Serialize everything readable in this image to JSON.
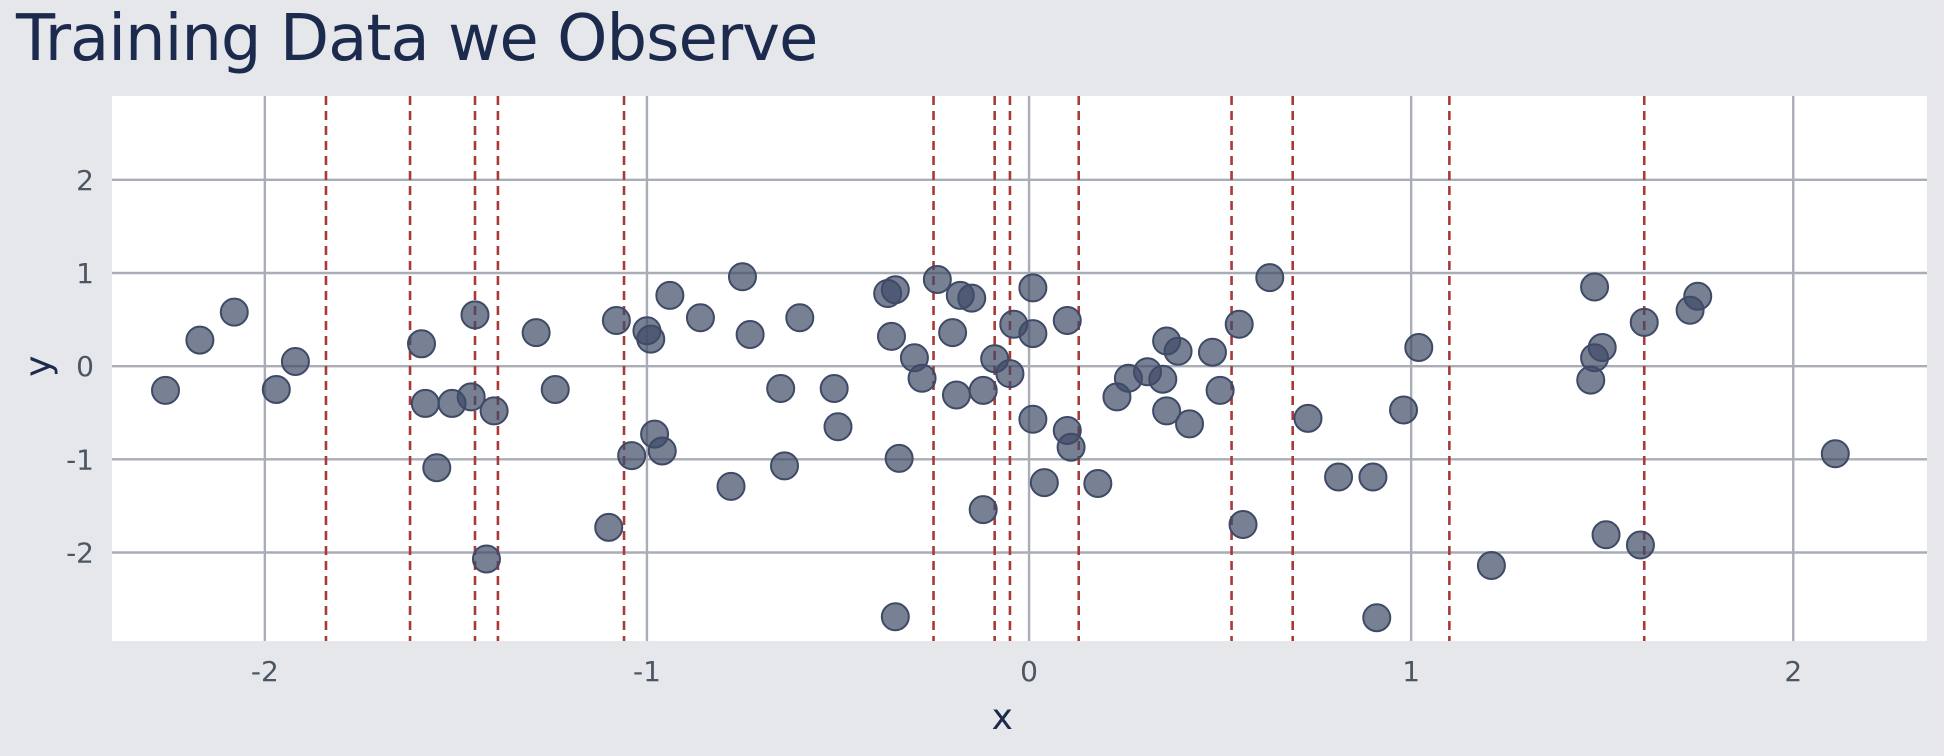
{
  "title": "Training Data we Observe",
  "chart_data": {
    "type": "scatter",
    "title": "Training Data we Observe",
    "xlabel": "x",
    "ylabel": "y",
    "xlim": [
      -2.4,
      2.35
    ],
    "ylim": [
      -2.95,
      2.9
    ],
    "xticks": [
      -2,
      -1,
      0,
      1,
      2
    ],
    "yticks": [
      -2,
      -1,
      0,
      1,
      2
    ],
    "grid": true,
    "colors": {
      "background": "#e5e7eb",
      "panel": "#ffffff",
      "grid": "#a9adb6",
      "points": "#3e4a66",
      "vlines": "#a83a3a",
      "title": "#1c2a4d"
    },
    "vertical_lines_x": [
      -1.84,
      -1.62,
      -1.45,
      -1.39,
      -1.06,
      -0.25,
      -0.09,
      -0.05,
      0.13,
      0.53,
      0.69,
      1.1,
      1.61
    ],
    "points": [
      {
        "x": -2.26,
        "y": -0.26
      },
      {
        "x": -2.17,
        "y": 0.28
      },
      {
        "x": -2.08,
        "y": 0.58
      },
      {
        "x": -1.97,
        "y": -0.25
      },
      {
        "x": -1.92,
        "y": 0.05
      },
      {
        "x": -1.59,
        "y": 0.24
      },
      {
        "x": -1.58,
        "y": -0.4
      },
      {
        "x": -1.55,
        "y": -1.09
      },
      {
        "x": -1.51,
        "y": -0.4
      },
      {
        "x": -1.45,
        "y": 0.55
      },
      {
        "x": -1.46,
        "y": -0.33
      },
      {
        "x": -1.42,
        "y": -2.07
      },
      {
        "x": -1.4,
        "y": -0.48
      },
      {
        "x": -1.29,
        "y": 0.36
      },
      {
        "x": -1.24,
        "y": -0.25
      },
      {
        "x": -1.1,
        "y": -1.73
      },
      {
        "x": -1.08,
        "y": 0.49
      },
      {
        "x": -1.04,
        "y": -0.96
      },
      {
        "x": -1.0,
        "y": 0.38
      },
      {
        "x": -0.99,
        "y": 0.29
      },
      {
        "x": -0.98,
        "y": -0.73
      },
      {
        "x": -0.96,
        "y": -0.91
      },
      {
        "x": -0.94,
        "y": 0.76
      },
      {
        "x": -0.86,
        "y": 0.52
      },
      {
        "x": -0.78,
        "y": -1.29
      },
      {
        "x": -0.75,
        "y": 0.96
      },
      {
        "x": -0.73,
        "y": 0.34
      },
      {
        "x": -0.65,
        "y": -0.24
      },
      {
        "x": -0.64,
        "y": -1.07
      },
      {
        "x": -0.6,
        "y": 0.52
      },
      {
        "x": -0.51,
        "y": -0.24
      },
      {
        "x": -0.5,
        "y": -0.65
      },
      {
        "x": -0.37,
        "y": 0.78
      },
      {
        "x": -0.35,
        "y": 0.82
      },
      {
        "x": -0.36,
        "y": 0.32
      },
      {
        "x": -0.35,
        "y": -2.69
      },
      {
        "x": -0.34,
        "y": -0.99
      },
      {
        "x": -0.3,
        "y": 0.09
      },
      {
        "x": -0.28,
        "y": -0.13
      },
      {
        "x": -0.24,
        "y": 0.93
      },
      {
        "x": -0.2,
        "y": 0.36
      },
      {
        "x": -0.19,
        "y": -0.31
      },
      {
        "x": -0.18,
        "y": 0.76
      },
      {
        "x": -0.15,
        "y": 0.73
      },
      {
        "x": -0.12,
        "y": -0.26
      },
      {
        "x": -0.12,
        "y": -1.54
      },
      {
        "x": -0.09,
        "y": 0.08
      },
      {
        "x": -0.05,
        "y": -0.08
      },
      {
        "x": -0.04,
        "y": 0.45
      },
      {
        "x": 0.01,
        "y": 0.84
      },
      {
        "x": 0.01,
        "y": 0.35
      },
      {
        "x": 0.01,
        "y": -0.57
      },
      {
        "x": 0.04,
        "y": -1.25
      },
      {
        "x": 0.1,
        "y": 0.49
      },
      {
        "x": 0.1,
        "y": -0.69
      },
      {
        "x": 0.11,
        "y": -0.87
      },
      {
        "x": 0.18,
        "y": -1.26
      },
      {
        "x": 0.23,
        "y": -0.33
      },
      {
        "x": 0.26,
        "y": -0.13
      },
      {
        "x": 0.31,
        "y": -0.06
      },
      {
        "x": 0.35,
        "y": -0.14
      },
      {
        "x": 0.36,
        "y": 0.27
      },
      {
        "x": 0.36,
        "y": -0.48
      },
      {
        "x": 0.39,
        "y": 0.16
      },
      {
        "x": 0.42,
        "y": -0.62
      },
      {
        "x": 0.48,
        "y": 0.15
      },
      {
        "x": 0.5,
        "y": -0.26
      },
      {
        "x": 0.55,
        "y": 0.45
      },
      {
        "x": 0.56,
        "y": -1.7
      },
      {
        "x": 0.63,
        "y": 0.95
      },
      {
        "x": 0.73,
        "y": -0.56
      },
      {
        "x": 0.81,
        "y": -1.19
      },
      {
        "x": 0.9,
        "y": -1.19
      },
      {
        "x": 0.91,
        "y": -2.7
      },
      {
        "x": 0.98,
        "y": -0.47
      },
      {
        "x": 1.02,
        "y": 0.2
      },
      {
        "x": 1.21,
        "y": -2.14
      },
      {
        "x": 1.47,
        "y": -0.15
      },
      {
        "x": 1.48,
        "y": 0.09
      },
      {
        "x": 1.48,
        "y": 0.85
      },
      {
        "x": 1.5,
        "y": 0.2
      },
      {
        "x": 1.51,
        "y": -1.81
      },
      {
        "x": 1.6,
        "y": -1.92
      },
      {
        "x": 1.61,
        "y": 0.47
      },
      {
        "x": 1.73,
        "y": 0.6
      },
      {
        "x": 1.75,
        "y": 0.75
      },
      {
        "x": 2.11,
        "y": -0.94
      }
    ]
  }
}
